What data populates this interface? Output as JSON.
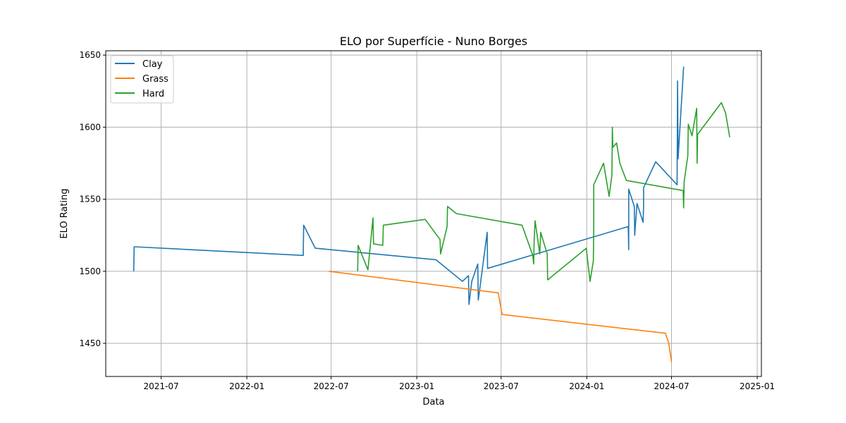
{
  "chart_data": {
    "type": "line",
    "title": "ELO por Superfície - Nuno Borges",
    "xlabel": "Data",
    "ylabel": "ELO Rating",
    "x_type": "date",
    "xlim": [
      "2021-03-04",
      "2025-01-10"
    ],
    "ylim": [
      1427,
      1653
    ],
    "x_ticks": [
      "2021-07-01",
      "2022-01-01",
      "2022-07-01",
      "2023-01-01",
      "2023-07-01",
      "2024-01-01",
      "2024-07-01",
      "2025-01-01"
    ],
    "x_tick_labels": [
      "2021-07",
      "2022-01",
      "2022-07",
      "2023-01",
      "2023-07",
      "2024-01",
      "2024-07",
      "2025-01"
    ],
    "y_ticks": [
      1450,
      1500,
      1550,
      1600,
      1650
    ],
    "grid": true,
    "legend_position": "top-left",
    "series": [
      {
        "name": "Clay",
        "color": "#1f77b4",
        "points": [
          [
            "2021-05-03",
            1500
          ],
          [
            "2021-05-04",
            1517
          ],
          [
            "2022-05-02",
            1511
          ],
          [
            "2022-05-03",
            1532
          ],
          [
            "2022-05-28",
            1516
          ],
          [
            "2023-02-11",
            1508
          ],
          [
            "2023-04-09",
            1493
          ],
          [
            "2023-04-22",
            1497
          ],
          [
            "2023-04-23",
            1477
          ],
          [
            "2023-04-29",
            1493
          ],
          [
            "2023-05-12",
            1505
          ],
          [
            "2023-05-13",
            1480
          ],
          [
            "2023-06-01",
            1527
          ],
          [
            "2023-06-02",
            1502
          ],
          [
            "2024-03-30",
            1531
          ],
          [
            "2024-03-31",
            1515
          ],
          [
            "2024-03-31",
            1557
          ],
          [
            "2024-04-12",
            1545
          ],
          [
            "2024-04-13",
            1525
          ],
          [
            "2024-04-18",
            1547
          ],
          [
            "2024-05-01",
            1534
          ],
          [
            "2024-05-02",
            1546
          ],
          [
            "2024-05-02",
            1558
          ],
          [
            "2024-05-28",
            1576
          ],
          [
            "2024-07-13",
            1560
          ],
          [
            "2024-07-14",
            1632
          ],
          [
            "2024-07-15",
            1578
          ],
          [
            "2024-07-27",
            1642
          ]
        ]
      },
      {
        "name": "Grass",
        "color": "#ff7f0e",
        "points": [
          [
            "2022-06-26",
            1500
          ],
          [
            "2023-06-25",
            1485
          ],
          [
            "2023-07-03",
            1470
          ],
          [
            "2024-06-18",
            1457
          ],
          [
            "2024-06-25",
            1450
          ],
          [
            "2024-07-01",
            1437
          ]
        ]
      },
      {
        "name": "Hard",
        "color": "#2ca02c",
        "points": [
          [
            "2022-08-27",
            1500
          ],
          [
            "2022-08-28",
            1518
          ],
          [
            "2022-09-18",
            1501
          ],
          [
            "2022-09-29",
            1537
          ],
          [
            "2022-09-30",
            1519
          ],
          [
            "2022-10-20",
            1518
          ],
          [
            "2022-10-21",
            1532
          ],
          [
            "2023-01-19",
            1536
          ],
          [
            "2023-02-20",
            1522
          ],
          [
            "2023-02-21",
            1512
          ],
          [
            "2023-03-07",
            1531
          ],
          [
            "2023-03-08",
            1545
          ],
          [
            "2023-03-27",
            1540
          ],
          [
            "2023-08-15",
            1532
          ],
          [
            "2023-09-07",
            1511
          ],
          [
            "2023-09-09",
            1505
          ],
          [
            "2023-09-10",
            1522
          ],
          [
            "2023-09-12",
            1535
          ],
          [
            "2023-09-22",
            1512
          ],
          [
            "2023-09-24",
            1527
          ],
          [
            "2023-10-08",
            1512
          ],
          [
            "2023-10-09",
            1494
          ],
          [
            "2023-12-31",
            1516
          ],
          [
            "2024-01-08",
            1493
          ],
          [
            "2024-01-15",
            1507
          ],
          [
            "2024-01-16",
            1531
          ],
          [
            "2024-01-16",
            1560
          ],
          [
            "2024-02-06",
            1575
          ],
          [
            "2024-02-18",
            1552
          ],
          [
            "2024-02-24",
            1567
          ],
          [
            "2024-02-25",
            1600
          ],
          [
            "2024-02-26",
            1586
          ],
          [
            "2024-03-05",
            1589
          ],
          [
            "2024-03-12",
            1575
          ],
          [
            "2024-03-26",
            1563
          ],
          [
            "2024-07-26",
            1556
          ],
          [
            "2024-07-27",
            1544
          ],
          [
            "2024-07-28",
            1562
          ],
          [
            "2024-08-05",
            1580
          ],
          [
            "2024-08-06",
            1602
          ],
          [
            "2024-08-14",
            1594
          ],
          [
            "2024-08-24",
            1613
          ],
          [
            "2024-08-25",
            1575
          ],
          [
            "2024-08-26",
            1595
          ],
          [
            "2024-10-16",
            1617
          ],
          [
            "2024-10-25",
            1610
          ],
          [
            "2024-11-03",
            1593
          ]
        ]
      }
    ]
  }
}
